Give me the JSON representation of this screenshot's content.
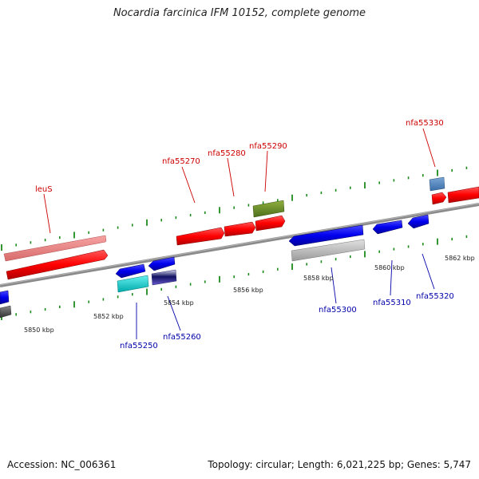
{
  "title": "Nocardia farcinica IFM 10152, complete genome",
  "footer": {
    "accession": "Accession: NC_006361",
    "info": "Topology: circular; Length: 6,021,225 bp; Genes: 5,747"
  },
  "scale_labels": [
    "5850 kbp",
    "5852 kbp",
    "5854 kbp",
    "5856 kbp",
    "5858 kbp",
    "5860 kbp",
    "5862 kbp"
  ],
  "genes": [
    {
      "name": "leuS",
      "strand": "+",
      "color": "#cc0000"
    },
    {
      "name": "nfa55250",
      "strand": "-",
      "color": "#0000aa"
    },
    {
      "name": "nfa55260",
      "strand": "-",
      "color": "#0000aa"
    },
    {
      "name": "nfa55270",
      "strand": "+",
      "color": "#cc0000"
    },
    {
      "name": "nfa55280",
      "strand": "+",
      "color": "#cc0000"
    },
    {
      "name": "nfa55290",
      "strand": "+",
      "color": "#cc0000"
    },
    {
      "name": "nfa55300",
      "strand": "-",
      "color": "#0000aa"
    },
    {
      "name": "nfa55310",
      "strand": "-",
      "color": "#0000aa"
    },
    {
      "name": "nfa55320",
      "strand": "-",
      "color": "#0000aa"
    },
    {
      "name": "nfa55330",
      "strand": "+",
      "color": "#cc0000"
    }
  ]
}
